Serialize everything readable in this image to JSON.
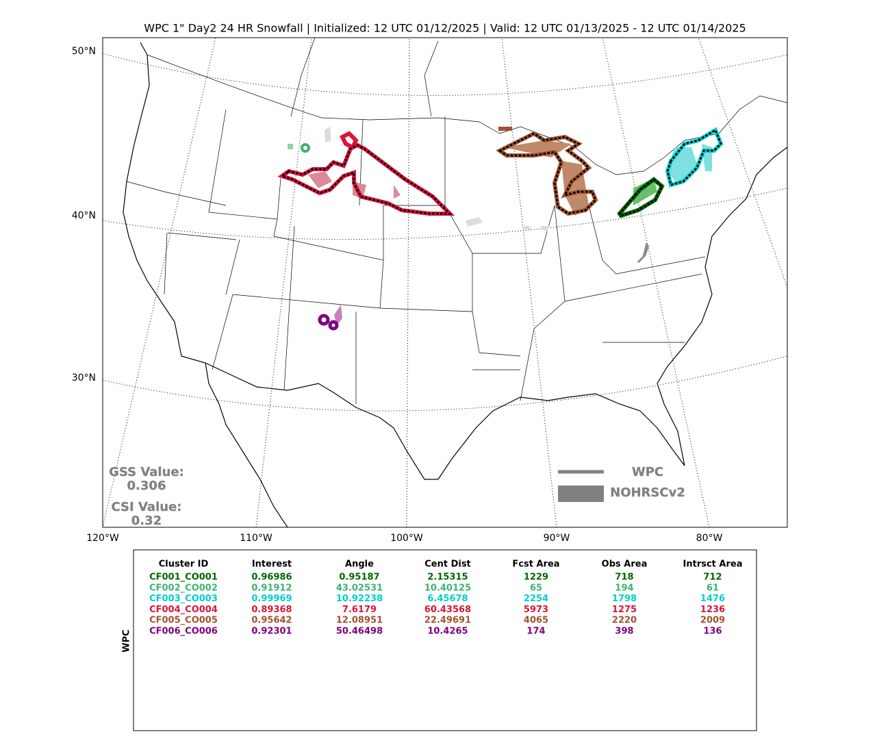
{
  "header": {
    "title": "WPC 1\" Day2 24 HR Snowfall | Initialized: 12 UTC 01/12/2025 | Valid: 12 UTC 01/13/2025 - 12 UTC 01/14/2025"
  },
  "map": {
    "lat_labels": [
      "50°N",
      "40°N",
      "30°N"
    ],
    "lon_labels": [
      "120°W",
      "110°W",
      "100°W",
      "90°W",
      "80°W"
    ],
    "scores": {
      "gss_label": "GSS Value:",
      "gss": "0.306",
      "csi_label": "CSI Value:",
      "csi": "0.32"
    },
    "legend": [
      "WPC",
      "NOHRSCv2"
    ]
  },
  "table": {
    "side_label": "WPC",
    "columns": [
      "Cluster ID",
      "Interest",
      "Angle",
      "Cent Dist",
      "Fcst Area",
      "Obs Area",
      "Intrsct Area"
    ],
    "rows": [
      {
        "color": "#006400",
        "cells": [
          "CF001_CO001",
          "0.96986",
          "0.95187",
          "2.15315",
          "1229",
          "718",
          "712"
        ]
      },
      {
        "color": "#3cb371",
        "cells": [
          "CF002_CO002",
          "0.91912",
          "43.02531",
          "10.40125",
          "65",
          "194",
          "61"
        ]
      },
      {
        "color": "#00ced1",
        "cells": [
          "CF003_CO003",
          "0.99969",
          "10.92238",
          "6.45678",
          "2254",
          "1798",
          "1476"
        ]
      },
      {
        "color": "#dc143c",
        "cells": [
          "CF004_CO004",
          "0.89368",
          "7.6179",
          "60.43568",
          "5973",
          "1275",
          "1236"
        ]
      },
      {
        "color": "#a0522d",
        "cells": [
          "CF005_CO005",
          "0.95642",
          "12.08951",
          "22.49691",
          "4065",
          "2220",
          "2009"
        ]
      },
      {
        "color": "#800080",
        "cells": [
          "CF006_CO006",
          "0.92301",
          "50.46498",
          "10.4265",
          "174",
          "398",
          "136"
        ]
      }
    ]
  }
}
